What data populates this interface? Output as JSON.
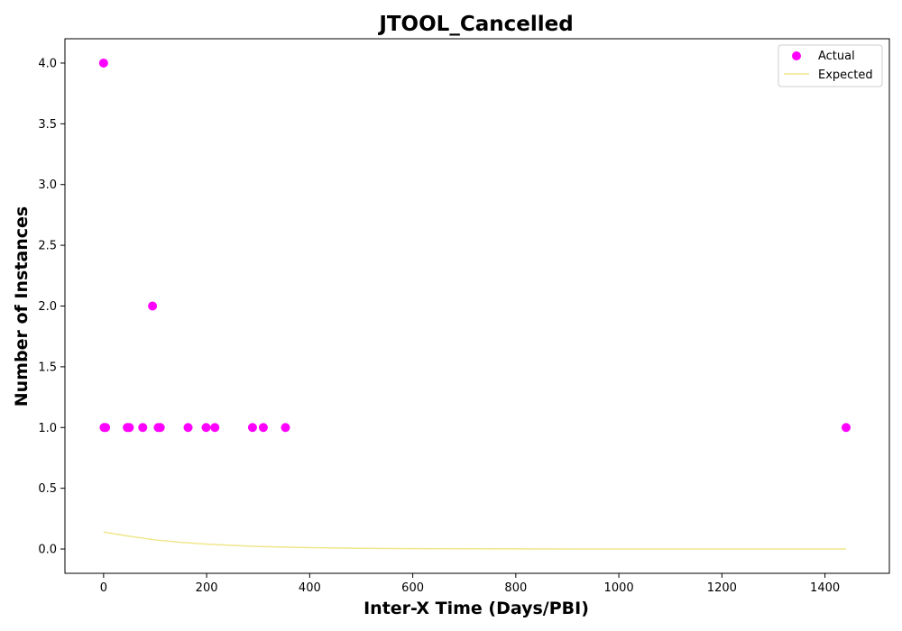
{
  "chart_data": {
    "type": "scatter",
    "title": "JTOOL_Cancelled",
    "xlabel": "Inter-X Time (Days/PBI)",
    "ylabel": "Number of Instances",
    "xlim": [
      -75,
      1525
    ],
    "ylim": [
      -0.2,
      4.2
    ],
    "xticks": [
      0,
      200,
      400,
      600,
      800,
      1000,
      1200,
      1400
    ],
    "yticks": [
      0.0,
      0.5,
      1.0,
      1.5,
      2.0,
      2.5,
      3.0,
      3.5,
      4.0
    ],
    "legend_position": "top-right",
    "series": [
      {
        "name": "Actual",
        "kind": "scatter",
        "color": "#ff00ff",
        "points": [
          {
            "x": 0,
            "y": 4
          },
          {
            "x": 1,
            "y": 1
          },
          {
            "x": 4,
            "y": 1
          },
          {
            "x": 46,
            "y": 1
          },
          {
            "x": 50,
            "y": 1
          },
          {
            "x": 76,
            "y": 1
          },
          {
            "x": 95,
            "y": 2
          },
          {
            "x": 106,
            "y": 1
          },
          {
            "x": 110,
            "y": 1
          },
          {
            "x": 164,
            "y": 1
          },
          {
            "x": 199,
            "y": 1
          },
          {
            "x": 216,
            "y": 1
          },
          {
            "x": 289,
            "y": 1
          },
          {
            "x": 310,
            "y": 1
          },
          {
            "x": 353,
            "y": 1
          },
          {
            "x": 1441,
            "y": 1
          }
        ]
      },
      {
        "name": "Expected",
        "kind": "line",
        "color": "#f0e68c",
        "points": [
          {
            "x": 0,
            "y": 0.14
          },
          {
            "x": 50,
            "y": 0.105
          },
          {
            "x": 100,
            "y": 0.075
          },
          {
            "x": 150,
            "y": 0.055
          },
          {
            "x": 200,
            "y": 0.04
          },
          {
            "x": 250,
            "y": 0.03
          },
          {
            "x": 300,
            "y": 0.021
          },
          {
            "x": 400,
            "y": 0.011
          },
          {
            "x": 500,
            "y": 0.006
          },
          {
            "x": 600,
            "y": 0.003
          },
          {
            "x": 800,
            "y": 0.001
          },
          {
            "x": 1000,
            "y": 0.0005
          },
          {
            "x": 1200,
            "y": 0.0002
          },
          {
            "x": 1441,
            "y": 0.0
          }
        ]
      }
    ]
  }
}
